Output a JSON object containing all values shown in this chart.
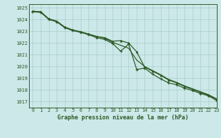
{
  "title": "Graphe pression niveau de la mer (hPa)",
  "background_color": "#cce8e8",
  "grid_color": "#aacccc",
  "line_color": "#2d5a27",
  "xlim": [
    -0.5,
    23
  ],
  "ylim": [
    1016.5,
    1025.3
  ],
  "xticks": [
    0,
    1,
    2,
    3,
    4,
    5,
    6,
    7,
    8,
    9,
    10,
    11,
    12,
    13,
    14,
    15,
    16,
    17,
    18,
    19,
    20,
    21,
    22,
    23
  ],
  "yticks": [
    1017,
    1018,
    1019,
    1020,
    1021,
    1022,
    1023,
    1024,
    1025
  ],
  "series1_smooth": {
    "x": [
      0,
      1,
      2,
      3,
      4,
      5,
      6,
      7,
      8,
      9,
      10,
      11,
      12,
      13,
      14,
      15,
      16,
      17,
      18,
      19,
      20,
      21,
      22,
      23
    ],
    "y": [
      1024.7,
      1024.65,
      1024.05,
      1023.85,
      1023.35,
      1023.1,
      1022.95,
      1022.75,
      1022.55,
      1022.4,
      1022.05,
      1021.8,
      1021.55,
      1020.55,
      1020.0,
      1019.65,
      1019.3,
      1018.9,
      1018.65,
      1018.35,
      1018.1,
      1017.85,
      1017.6,
      1017.25
    ]
  },
  "series2_upper": {
    "x": [
      0,
      1,
      2,
      3,
      4,
      5,
      6,
      7,
      8,
      9,
      10,
      11,
      12,
      13,
      14,
      15,
      16,
      17,
      18,
      19,
      20,
      21,
      22,
      23
    ],
    "y": [
      1024.7,
      1024.65,
      1024.05,
      1023.85,
      1023.35,
      1023.1,
      1022.95,
      1022.75,
      1022.55,
      1022.45,
      1022.15,
      1022.2,
      1022.0,
      1021.25,
      1019.95,
      1019.6,
      1019.25,
      1018.85,
      1018.6,
      1018.3,
      1018.05,
      1017.8,
      1017.55,
      1017.2
    ]
  },
  "series3_lower": {
    "x": [
      0,
      1,
      2,
      3,
      4,
      5,
      6,
      7,
      8,
      9,
      10,
      11,
      12,
      13,
      14,
      15,
      16,
      17,
      18,
      19,
      20,
      21,
      22,
      23
    ],
    "y": [
      1024.65,
      1024.6,
      1024.0,
      1023.8,
      1023.3,
      1023.05,
      1022.9,
      1022.7,
      1022.45,
      1022.3,
      1021.95,
      1021.3,
      1021.9,
      1019.75,
      1019.85,
      1019.35,
      1018.95,
      1018.6,
      1018.45,
      1018.15,
      1017.95,
      1017.7,
      1017.5,
      1017.1
    ]
  }
}
